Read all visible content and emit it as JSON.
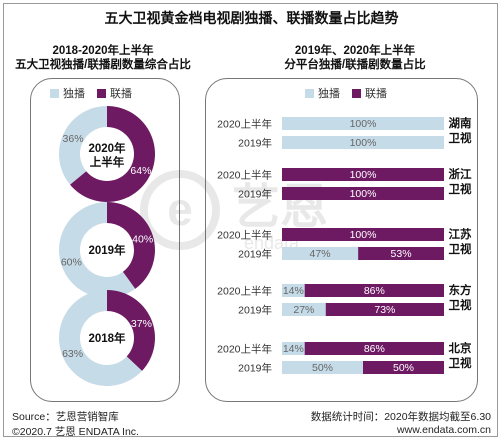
{
  "title": "五大卫视黄金档电视剧独播、联播数量占比趋势",
  "colors": {
    "exclusive": "#c6dbe8",
    "joint": "#6d1a63",
    "panel_border": "#777777"
  },
  "left": {
    "title_line1": "2018-2020年上半年",
    "title_line2": "五大卫视独播/联播剧数量综合占比",
    "legend": [
      "独播",
      "联播"
    ]
  },
  "right": {
    "title_line1": "2019年、2020年上半年",
    "title_line2": "分平台独播/联播剧数量占比",
    "legend": [
      "独播",
      "联播"
    ]
  },
  "chart_data": [
    {
      "type": "pie",
      "subtype": "donut",
      "series_names": [
        "独播",
        "联播"
      ],
      "donuts": [
        {
          "label_line1": "2020年",
          "label_line2": "上半年",
          "exclusive": 36,
          "joint": 64
        },
        {
          "label_line1": "2019年",
          "label_line2": "",
          "exclusive": 60,
          "joint": 40
        },
        {
          "label_line1": "2018年",
          "label_line2": "",
          "exclusive": 63,
          "joint": 37
        }
      ]
    },
    {
      "type": "bar",
      "subtype": "stacked-horizontal-100",
      "series": [
        {
          "name": "独播"
        },
        {
          "name": "联播"
        }
      ],
      "groups": [
        {
          "platform_line1": "湖南",
          "platform_line2": "卫视",
          "rows": [
            {
              "label": "2020上半年",
              "exclusive": 100,
              "joint": 0
            },
            {
              "label": "2019年",
              "exclusive": 100,
              "joint": 0
            }
          ]
        },
        {
          "platform_line1": "浙江",
          "platform_line2": "卫视",
          "rows": [
            {
              "label": "2020上半年",
              "exclusive": 0,
              "joint": 100
            },
            {
              "label": "2019年",
              "exclusive": 0,
              "joint": 100
            }
          ]
        },
        {
          "platform_line1": "江苏",
          "platform_line2": "卫视",
          "rows": [
            {
              "label": "2020上半年",
              "exclusive": 0,
              "joint": 100
            },
            {
              "label": "2019年",
              "exclusive": 47,
              "joint": 53
            }
          ]
        },
        {
          "platform_line1": "东方",
          "platform_line2": "卫视",
          "rows": [
            {
              "label": "2020上半年",
              "exclusive": 14,
              "joint": 86,
              "exclusive_label_hidden": true
            },
            {
              "label": "2019年",
              "exclusive": 27,
              "joint": 73
            }
          ]
        },
        {
          "platform_line1": "北京",
          "platform_line2": "卫视",
          "rows": [
            {
              "label": "2020上半年",
              "exclusive": 14,
              "joint": 86
            },
            {
              "label": "2019年",
              "exclusive": 50,
              "joint": 50
            }
          ]
        }
      ]
    }
  ],
  "watermark": {
    "mark": "e",
    "text": "艺恩",
    "latin": "endata"
  },
  "footer": {
    "source": "Source：艺恩营销智库",
    "copyright": "©2020.7 艺恩 ENDATA Inc.",
    "note": "数据统计时间：2020年数据均截至6.30",
    "site": "www.endata.com.cn"
  }
}
